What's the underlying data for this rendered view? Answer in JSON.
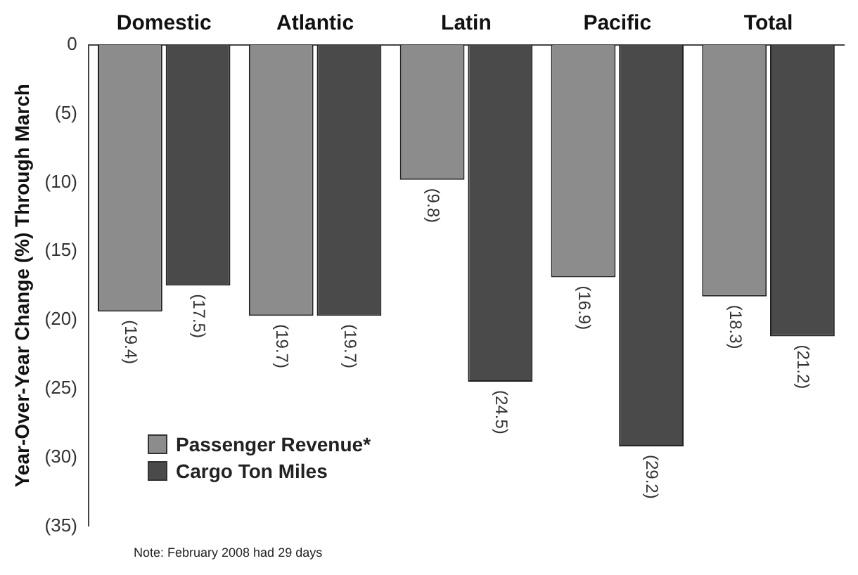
{
  "chart_data": {
    "type": "bar",
    "categories": [
      "Domestic",
      "Atlantic",
      "Latin",
      "Pacific",
      "Total"
    ],
    "ylabel": "Year-Over-Year Change (%) Through March",
    "series": [
      {
        "name": "Passenger Revenue*",
        "color": "#8c8c8c",
        "values": [
          -19.4,
          -19.7,
          -9.8,
          -16.9,
          -18.3
        ],
        "value_labels": [
          "(19.4)",
          "(19.7)",
          "(9.8)",
          "(16.9)",
          "(18.3)"
        ]
      },
      {
        "name": "Cargo Ton Miles",
        "color": "#4a4a4a",
        "values": [
          -17.5,
          -19.7,
          -24.5,
          -29.2,
          -21.2
        ],
        "value_labels": [
          "(17.5)",
          "(19.7)",
          "(24.5)",
          "(29.2)",
          "(21.2)"
        ]
      }
    ],
    "ylim": [
      -35,
      0
    ],
    "yticks": [
      {
        "value": -35,
        "label": "(35)"
      },
      {
        "value": -30,
        "label": "(30)"
      },
      {
        "value": -25,
        "label": "(25)"
      },
      {
        "value": -20,
        "label": "(20)"
      },
      {
        "value": -15,
        "label": "(15)"
      },
      {
        "value": -10,
        "label": "(10)"
      },
      {
        "value": -5,
        "label": "(5)"
      },
      {
        "value": 0,
        "label": "0"
      }
    ],
    "grid": false,
    "legend": "bottom left",
    "annotations": [
      "Note:  February 2008 had 29 days"
    ]
  }
}
